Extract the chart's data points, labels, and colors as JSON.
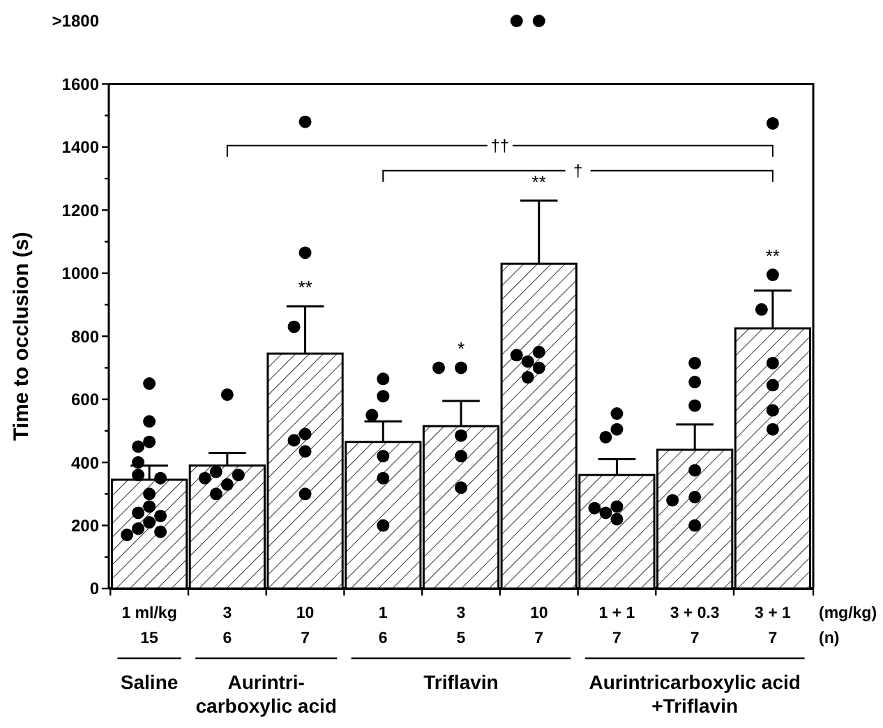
{
  "chart_data": {
    "type": "bar",
    "ylabel": "Time to occlusion (s)",
    "categories": [
      "1 ml/kg",
      "3",
      "10",
      "1",
      "3",
      "10",
      "1 + 1",
      "3 + 0.3",
      "3 + 1"
    ],
    "ylim": [
      0,
      1800
    ],
    "yticks": [
      0,
      {
        "value": 100,
        "label": null
      },
      200,
      {
        "value": 300,
        "label": null
      },
      400,
      {
        "value": 500,
        "label": null
      },
      600,
      {
        "value": 700,
        "label": null
      },
      800,
      {
        "value": 900,
        "label": null
      },
      1000,
      {
        "value": 1100,
        "label": null
      },
      1200,
      {
        "value": 1300,
        "label": null
      },
      1400,
      {
        "value": 1500,
        "label": null
      },
      1600,
      {
        "value": 1800,
        "label": ">1800"
      }
    ],
    "series": [
      {
        "color": "#000000",
        "values": [
          345,
          390,
          745,
          465,
          515,
          1030,
          360,
          440,
          825
        ],
        "errors": [
          [
            345,
            390
          ],
          [
            390,
            430
          ],
          [
            745,
            895
          ],
          [
            465,
            530
          ],
          [
            515,
            595
          ],
          [
            1030,
            1230
          ],
          [
            360,
            410
          ],
          [
            440,
            520
          ],
          [
            825,
            945
          ]
        ]
      },
      {
        "type": "scatter",
        "color": "#000000",
        "values": [
          650,
          615,
          1480,
          665,
          700,
          1800,
          555,
          715,
          1475
        ]
      },
      {
        "type": "scatter",
        "color": "#000000",
        "values": [
          530,
          370,
          1065,
          610,
          700,
          1800,
          505,
          655,
          995
        ]
      },
      {
        "type": "scatter",
        "color": "#000000",
        "values": [
          465,
          360,
          830,
          550,
          485,
          750,
          480,
          580,
          885
        ]
      },
      {
        "type": "scatter",
        "color": "#000000",
        "values": [
          450,
          350,
          490,
          420,
          420,
          740,
          260,
          375,
          715
        ]
      },
      {
        "type": "scatter",
        "color": "#000000",
        "values": [
          400,
          330,
          470,
          350,
          320,
          720,
          255,
          290,
          645
        ]
      },
      {
        "type": "scatter",
        "color": "#000000",
        "values": [
          360,
          300,
          435,
          200,
          null,
          700,
          240,
          280,
          565
        ]
      },
      {
        "type": "scatter",
        "color": "#000000",
        "values": [
          350,
          null,
          300,
          null,
          null,
          670,
          220,
          200,
          505
        ]
      },
      {
        "type": "scatter",
        "color": "#000000",
        "values": [
          300,
          null,
          null,
          null,
          null,
          null,
          null,
          null,
          null
        ]
      },
      {
        "type": "scatter",
        "color": "#000000",
        "values": [
          260,
          null,
          null,
          null,
          null,
          null,
          null,
          null,
          null
        ]
      },
      {
        "type": "scatter",
        "color": "#000000",
        "values": [
          240,
          null,
          null,
          null,
          null,
          null,
          null,
          null,
          null
        ]
      },
      {
        "type": "scatter",
        "color": "#000000",
        "values": [
          230,
          null,
          null,
          null,
          null,
          null,
          null,
          null,
          null
        ]
      },
      {
        "type": "scatter",
        "color": "#000000",
        "values": [
          210,
          null,
          null,
          null,
          null,
          null,
          null,
          null,
          null
        ]
      },
      {
        "type": "scatter",
        "color": "#000000",
        "values": [
          190,
          null,
          null,
          null,
          null,
          null,
          null,
          null,
          null
        ]
      },
      {
        "type": "scatter",
        "color": "#000000",
        "values": [
          180,
          null,
          null,
          null,
          null,
          null,
          null,
          null,
          null
        ]
      },
      {
        "type": "scatter",
        "color": "#000000",
        "values": [
          170,
          null,
          null,
          null,
          null,
          null,
          null,
          null,
          null
        ]
      }
    ],
    "marker": "circle",
    "annotations": [
      "15",
      "6",
      "7",
      "6",
      "5",
      "7",
      "7",
      "7",
      "7",
      "(mg/kg)",
      "(n)",
      "Saline",
      "Aurintri-\ncarboxylic acid",
      "Triflavin",
      "Aurintricarboxylic acid\n+Triflavin",
      "††",
      "†",
      "**",
      "*",
      "**",
      "**"
    ]
  }
}
